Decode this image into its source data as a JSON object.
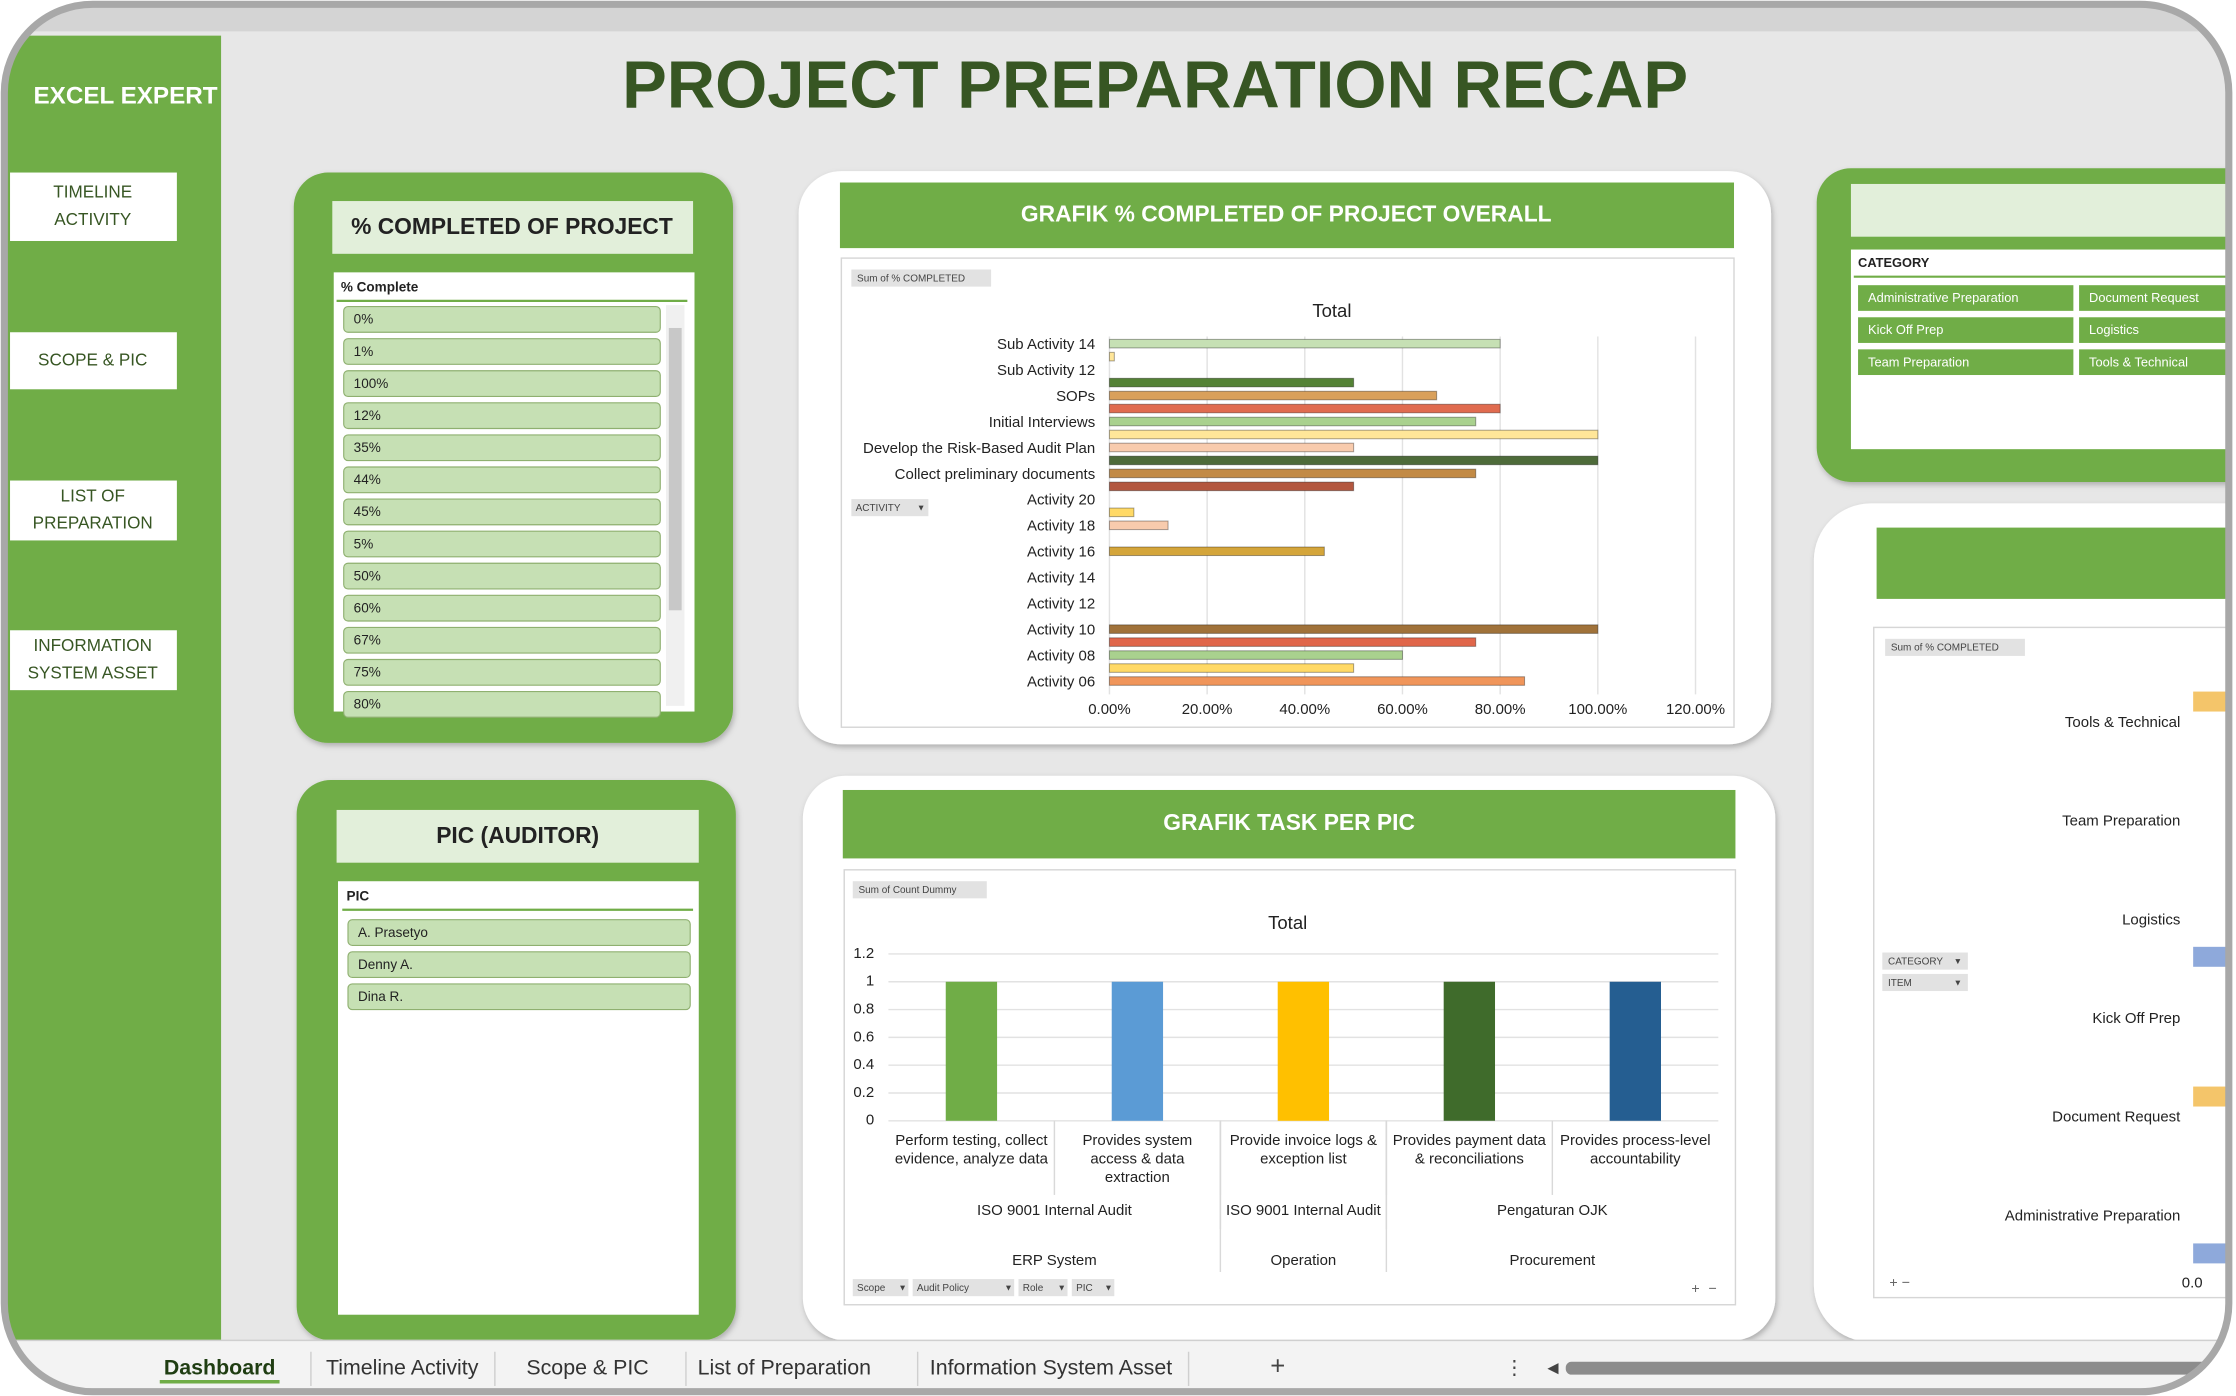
{
  "sidebar": {
    "brand": "EXCEL EXPERT",
    "nav": [
      [
        "TIMELINE",
        "ACTIVITY"
      ],
      [
        "SCOPE & PIC"
      ],
      [
        "LIST OF",
        "PREPARATION"
      ],
      [
        "INFORMATION",
        "SYSTEM ASSET"
      ]
    ]
  },
  "header": {
    "title": "PROJECT PREPARATION RECAP"
  },
  "slicers": [
    {
      "title": "% COMPLETED OF PROJECT",
      "field": "% Complete",
      "items": [
        "0%",
        "1%",
        "100%",
        "12%",
        "35%",
        "44%",
        "45%",
        "5%",
        "50%",
        "60%",
        "67%",
        "75%",
        "80%"
      ]
    },
    {
      "title": "PIC (AUDITOR)",
      "field": "PIC",
      "items": [
        "A. Prasetyo",
        "Denny A.",
        "Dina R."
      ]
    },
    {
      "field": "CATEGORY",
      "items": [
        "Administrative Preparation",
        "Document Request",
        "Kick Off Prep",
        "Logistics",
        "Team Preparation",
        "Tools & Technical"
      ]
    }
  ],
  "chart_data": [
    {
      "type": "bar",
      "orientation": "horizontal",
      "title": "GRAFIK % COMPLETED OF PROJECT OVERALL",
      "tag": "Sum of % COMPLETED",
      "legend_title": "Total",
      "field": "ACTIVITY",
      "categories": [
        "Sub Activity 14",
        null,
        "Sub Activity 12",
        null,
        "SOPs",
        null,
        "Initial Interviews",
        null,
        "Develop the Risk-Based Audit Plan",
        null,
        "Collect preliminary documents",
        null,
        "Activity 20",
        null,
        "Activity 18",
        null,
        "Activity 16",
        null,
        "Activity 14",
        null,
        "Activity 12",
        null,
        "Activity 10",
        null,
        "Activity 08",
        null,
        "Activity 06"
      ],
      "values": [
        80,
        1,
        0,
        50,
        67,
        80,
        75,
        100,
        50,
        100,
        75,
        50,
        0,
        5,
        12,
        0,
        44,
        0,
        0,
        0,
        0,
        0,
        100,
        75,
        60,
        50,
        85
      ],
      "colors": [
        "#c6e0b4",
        "#ffe699",
        "#cccccc",
        "#548235",
        "#d9a05b",
        "#e06b4f",
        "#a9d18e",
        "#ffe699",
        "#f8cbad",
        "#4e6b3a",
        "#c28a45",
        "#b3573f",
        "#cccccc",
        "#ffd966",
        "#f8cbad",
        "#cccccc",
        "#d4a53a",
        "#cccccc",
        "#cccccc",
        "#cccccc",
        "#cccccc",
        "#cccccc",
        "#a0723a",
        "#e0664a",
        "#a9d18e",
        "#ffd966",
        "#f0955a"
      ],
      "xlim": [
        0,
        120
      ],
      "xticks": [
        {
          "value": 0,
          "label": "0.00%"
        },
        {
          "value": 20,
          "label": "20.00%"
        },
        {
          "value": 40,
          "label": "40.00%"
        },
        {
          "value": 60,
          "label": "60.00%"
        },
        {
          "value": 80,
          "label": "80.00%"
        },
        {
          "value": 100,
          "label": "100.00%"
        },
        {
          "value": 120,
          "label": "120.00%"
        }
      ],
      "grid": true
    },
    {
      "type": "bar",
      "orientation": "vertical",
      "title": "GRAFIK TASK PER PIC",
      "tag": "Sum of Count Dummy",
      "legend_title": "Total",
      "categories": [
        "Perform testing, collect evidence, analyze data",
        "Provides system access & data extraction",
        "Provide invoice logs & exception list",
        "Provides payment data & reconciliations",
        "Provides process-level accountability"
      ],
      "category_levels": [
        [
          "ISO 9001 Internal Audit",
          null,
          "ISO 9001 Internal Audit",
          "Pengaturan OJK",
          null
        ],
        [
          "ERP System",
          null,
          "Operation",
          "Procurement",
          null
        ]
      ],
      "values": [
        1,
        1,
        1,
        1,
        1
      ],
      "colors": [
        "#70ad47",
        "#5b9bd5",
        "#ffc000",
        "#3f6b2b",
        "#255e91"
      ],
      "ylim": [
        0,
        1.2
      ],
      "yticks": [
        0,
        0.2,
        0.4,
        0.6,
        0.8,
        1,
        1.2
      ],
      "grid": true,
      "filters": [
        "Scope",
        "Audit Policy",
        "Role",
        "PIC"
      ]
    },
    {
      "type": "bar",
      "orientation": "horizontal",
      "tag": "Sum of % COMPLETED",
      "fields": [
        "CATEGORY",
        "ITEM"
      ],
      "categories": [
        "Tools & Technical",
        "Team Preparation",
        "Logistics",
        "Kick Off Prep",
        "Document Request",
        "Administrative Preparation"
      ],
      "clipped_tick": "0.0"
    }
  ],
  "tabs": [
    "Dashboard",
    "Timeline Activity",
    "Scope & PIC",
    "List of Preparation",
    "Information System Asset"
  ],
  "new_tab": "+"
}
